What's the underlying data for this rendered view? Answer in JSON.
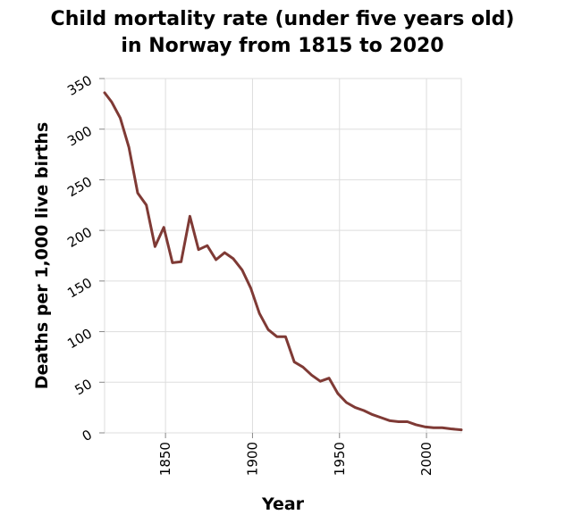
{
  "chart_data": {
    "type": "line",
    "title": [
      "Child mortality rate (under five years old)",
      "in Norway from 1815 to 2020"
    ],
    "xlabel": "Year",
    "ylabel": "Deaths per 1,000 live births",
    "xlim": [
      1815,
      2020
    ],
    "ylim": [
      0,
      350
    ],
    "x_ticks": [
      1850,
      1900,
      1950,
      2000
    ],
    "y_ticks": [
      0,
      50,
      100,
      150,
      200,
      250,
      300,
      350
    ],
    "grid": true,
    "color": "#7f3a35",
    "series": [
      {
        "x": [
          1815,
          1819,
          1824,
          1829,
          1834,
          1839,
          1844,
          1849,
          1854,
          1859,
          1864,
          1869,
          1874,
          1879,
          1884,
          1889,
          1894,
          1899,
          1904,
          1909,
          1914,
          1919,
          1924,
          1929,
          1934,
          1939,
          1944,
          1949,
          1954,
          1959,
          1964,
          1969,
          1974,
          1979,
          1984,
          1989,
          1994,
          1999,
          2004,
          2009,
          2014,
          2020
        ],
        "y": [
          336,
          327,
          311,
          282,
          237,
          225,
          184,
          203,
          168,
          169,
          214,
          181,
          185,
          171,
          178,
          172,
          161,
          143,
          118,
          102,
          95,
          95,
          70,
          65,
          57,
          51,
          54,
          39,
          30,
          25,
          22,
          18,
          15,
          12,
          11,
          11,
          8,
          6,
          5,
          5,
          4,
          3
        ]
      }
    ]
  }
}
